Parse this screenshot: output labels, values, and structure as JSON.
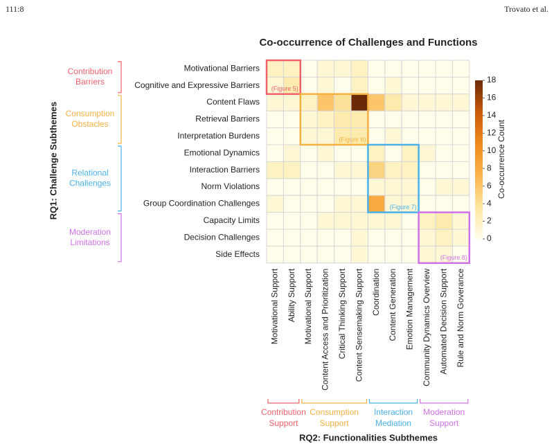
{
  "header": {
    "page": "111:8",
    "authors": "Trovato et al."
  },
  "chart_data": {
    "type": "heatmap",
    "title": "Co-occurrence of Challenges and Functions",
    "x_label": "RQ2: Functionalities Subthemes",
    "y_label": "RQ1: Challenge Subthemes",
    "x": [
      "Motivational Support",
      "Ability Support",
      "Motivational Support",
      "Content Access and Prioritization",
      "Critical Thinking Support",
      "Content Sensemaking Support",
      "Coordination",
      "Content Generation",
      "Emotion Management",
      "Community Dynamics Overview",
      "Automated Decision Support",
      "Rule and Norm Goverance"
    ],
    "y": [
      "Motivational Barriers",
      "Cognitive and Expressive Barriers",
      "Content Flaws",
      "Retrieval Barriers",
      "Interpretation Burdens",
      "Emotional Dynamics",
      "Interaction Barriers",
      "Norm Violations",
      "Group Coordination Challenges",
      "Capacity Limits",
      "Decision Challenges",
      "Side Effects"
    ],
    "values": [
      [
        2,
        2,
        0,
        1,
        1,
        2,
        0,
        0,
        0,
        0,
        0,
        0
      ],
      [
        1,
        3,
        0,
        1,
        0,
        2,
        0,
        1,
        0,
        0,
        0,
        0
      ],
      [
        1,
        1,
        2,
        6,
        4,
        18,
        6,
        3,
        1,
        1,
        1,
        1
      ],
      [
        0,
        0,
        1,
        2,
        3,
        3,
        0,
        0,
        0,
        0,
        0,
        0
      ],
      [
        0,
        0,
        1,
        1,
        3,
        3,
        0,
        1,
        0,
        0,
        0,
        0
      ],
      [
        0,
        1,
        0,
        1,
        0,
        0,
        2,
        0,
        2,
        1,
        0,
        0
      ],
      [
        2,
        2,
        0,
        0,
        1,
        1,
        5,
        2,
        2,
        0,
        0,
        0
      ],
      [
        0,
        0,
        0,
        0,
        0,
        0,
        1,
        1,
        1,
        0,
        1,
        1
      ],
      [
        1,
        0,
        0,
        0,
        1,
        1,
        8,
        1,
        1,
        0,
        0,
        0
      ],
      [
        0,
        0,
        0,
        1,
        1,
        1,
        1,
        1,
        0,
        2,
        3,
        1
      ],
      [
        0,
        0,
        0,
        0,
        0,
        1,
        0,
        0,
        0,
        1,
        2,
        1
      ],
      [
        0,
        0,
        0,
        0,
        0,
        1,
        0,
        0,
        0,
        1,
        1,
        0
      ]
    ],
    "zlim": [
      0,
      18
    ],
    "zticks": [
      0,
      2,
      4,
      6,
      8,
      10,
      12,
      14,
      16,
      18
    ],
    "colorbar_label": "Co-occurrence Count",
    "colorscale": [
      "#fffdea",
      "#fde7a2",
      "#fbb44c",
      "#f08a1c",
      "#c95a0a",
      "#6b2a05"
    ],
    "row_groups": [
      {
        "lines": [
          "Contribution",
          "Barriers"
        ],
        "start": 0,
        "end": 1,
        "color": "#f0606a"
      },
      {
        "lines": [
          "Consumption",
          "Obstacles"
        ],
        "start": 2,
        "end": 4,
        "color": "#f5b042"
      },
      {
        "lines": [
          "Relational",
          "Challenges"
        ],
        "start": 5,
        "end": 8,
        "color": "#4ab0e8"
      },
      {
        "lines": [
          "Moderation",
          "Limitations"
        ],
        "start": 9,
        "end": 11,
        "color": "#d070e8"
      }
    ],
    "col_groups": [
      {
        "lines": [
          "Contribution",
          "Support"
        ],
        "start": 0,
        "end": 1,
        "color": "#f0606a"
      },
      {
        "lines": [
          "Consumption",
          "Support"
        ],
        "start": 2,
        "end": 5,
        "color": "#f5b042"
      },
      {
        "lines": [
          "Interaction",
          "Mediation"
        ],
        "start": 6,
        "end": 8,
        "color": "#4ab0e8"
      },
      {
        "lines": [
          "Moderation",
          "Support"
        ],
        "start": 9,
        "end": 11,
        "color": "#d070e8"
      }
    ],
    "highlights": [
      {
        "label": "(Figure 5)",
        "rows": [
          0,
          1
        ],
        "cols": [
          0,
          1
        ],
        "color": "#f0606a"
      },
      {
        "label": "(Figure 6)",
        "rows": [
          2,
          4
        ],
        "cols": [
          2,
          5
        ],
        "color": "#f5b042"
      },
      {
        "label": "(Figure 7)",
        "rows": [
          5,
          8
        ],
        "cols": [
          6,
          8
        ],
        "color": "#4ab0e8"
      },
      {
        "label": "(Figure 8)",
        "rows": [
          9,
          11
        ],
        "cols": [
          9,
          11
        ],
        "color": "#d070e8"
      }
    ]
  }
}
